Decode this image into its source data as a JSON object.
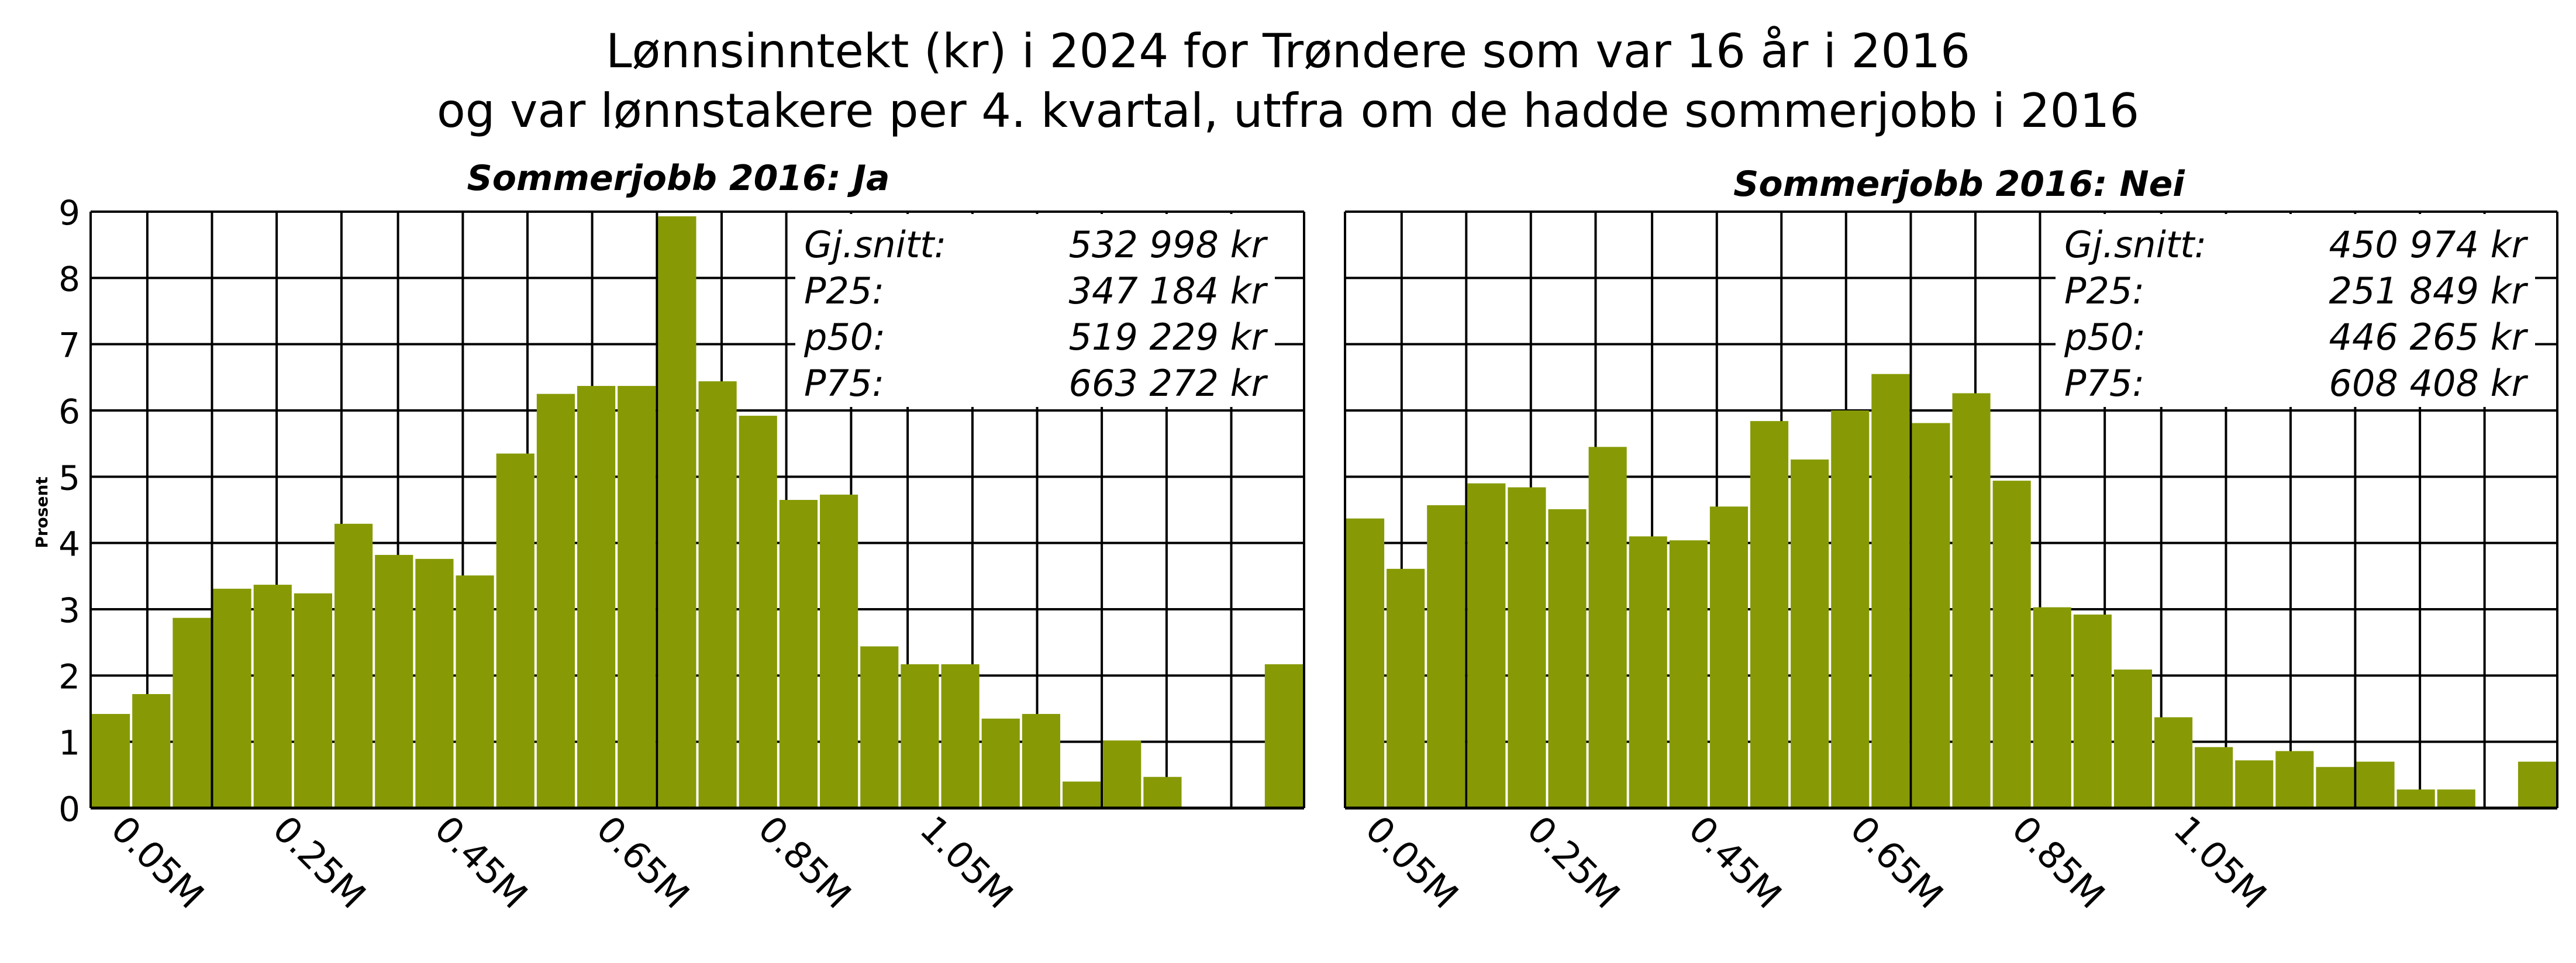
{
  "title": {
    "line1": "Lønnsinntekt (kr) i 2024 for Trøndere  som var 16 år i 2016",
    "line2": "og var lønnstakere per 4. kvartal, utfra om de hadde sommerjobb i 2016"
  },
  "colors": {
    "bar": "#879a05",
    "grid": "#000000",
    "background": "#ffffff"
  },
  "chart_data": [
    {
      "type": "bar",
      "title": "Sommerjobb 2016: Ja",
      "ylabel": "Prosent",
      "xlabel": "",
      "ylim": [
        0,
        9
      ],
      "y_ticks": [
        "0",
        "1",
        "2",
        "3",
        "4",
        "5",
        "6",
        "7",
        "8",
        "9"
      ],
      "x_ticks": [
        "0.05M",
        "0.25M",
        "0.45M",
        "0.65M",
        "0.85M",
        "1.05M"
      ],
      "grid": true,
      "categories": [
        "0.05M",
        "0.1M",
        "0.15M",
        "0.2M",
        "0.25M",
        "0.3M",
        "0.35M",
        "0.4M",
        "0.45M",
        "0.5M",
        "0.55M",
        "0.6M",
        "0.65M",
        "0.7M",
        "0.75M",
        "0.8M",
        "0.85M",
        "0.9M",
        "0.95M",
        "1.0M",
        "1.05M",
        "1.1M",
        "1.15M",
        "1.2M",
        "1.25M",
        "1.3M",
        "1.35M",
        "1.4M",
        "1.45M",
        "1.5M"
      ],
      "values": [
        1.42,
        1.72,
        2.87,
        3.31,
        3.37,
        3.24,
        4.29,
        3.82,
        3.76,
        3.51,
        5.35,
        6.25,
        6.37,
        6.37,
        8.93,
        6.44,
        5.92,
        4.65,
        4.73,
        2.44,
        2.17,
        2.17,
        1.35,
        1.42,
        0.4,
        1.02,
        0.47,
        0,
        0,
        2.17
      ],
      "stats": [
        {
          "label": "Gj.snitt:",
          "value": "532 998 kr"
        },
        {
          "label": "P25:",
          "value": "347 184 kr"
        },
        {
          "label": "p50:",
          "value": "519 229 kr"
        },
        {
          "label": "P75:",
          "value": "663 272 kr"
        }
      ]
    },
    {
      "type": "bar",
      "title": "Sommerjobb 2016: Nei",
      "ylabel": "",
      "xlabel": "",
      "ylim": [
        0,
        9
      ],
      "x_ticks": [
        "0.05M",
        "0.25M",
        "0.45M",
        "0.65M",
        "0.85M",
        "1.05M"
      ],
      "grid": true,
      "categories": [
        "0.05M",
        "0.1M",
        "0.15M",
        "0.2M",
        "0.25M",
        "0.3M",
        "0.35M",
        "0.4M",
        "0.45M",
        "0.5M",
        "0.55M",
        "0.6M",
        "0.65M",
        "0.7M",
        "0.75M",
        "0.8M",
        "0.85M",
        "0.9M",
        "0.95M",
        "1.0M",
        "1.05M",
        "1.1M",
        "1.15M",
        "1.2M",
        "1.25M",
        "1.3M",
        "1.35M",
        "1.4M",
        "1.45M",
        "1.5M"
      ],
      "values": [
        4.37,
        3.61,
        4.57,
        4.9,
        4.84,
        4.51,
        5.45,
        4.1,
        4.04,
        4.55,
        5.84,
        5.26,
        6.0,
        6.55,
        5.81,
        6.26,
        4.94,
        3.03,
        2.92,
        2.09,
        1.37,
        0.92,
        0.72,
        0.86,
        0.62,
        0.7,
        0.28,
        0.28,
        0,
        0.7
      ],
      "stats": [
        {
          "label": "Gj.snitt:",
          "value": "450 974 kr"
        },
        {
          "label": "P25:",
          "value": "251 849 kr"
        },
        {
          "label": "p50:",
          "value": "446 265 kr"
        },
        {
          "label": "P75:",
          "value": "608 408 kr"
        }
      ]
    }
  ]
}
